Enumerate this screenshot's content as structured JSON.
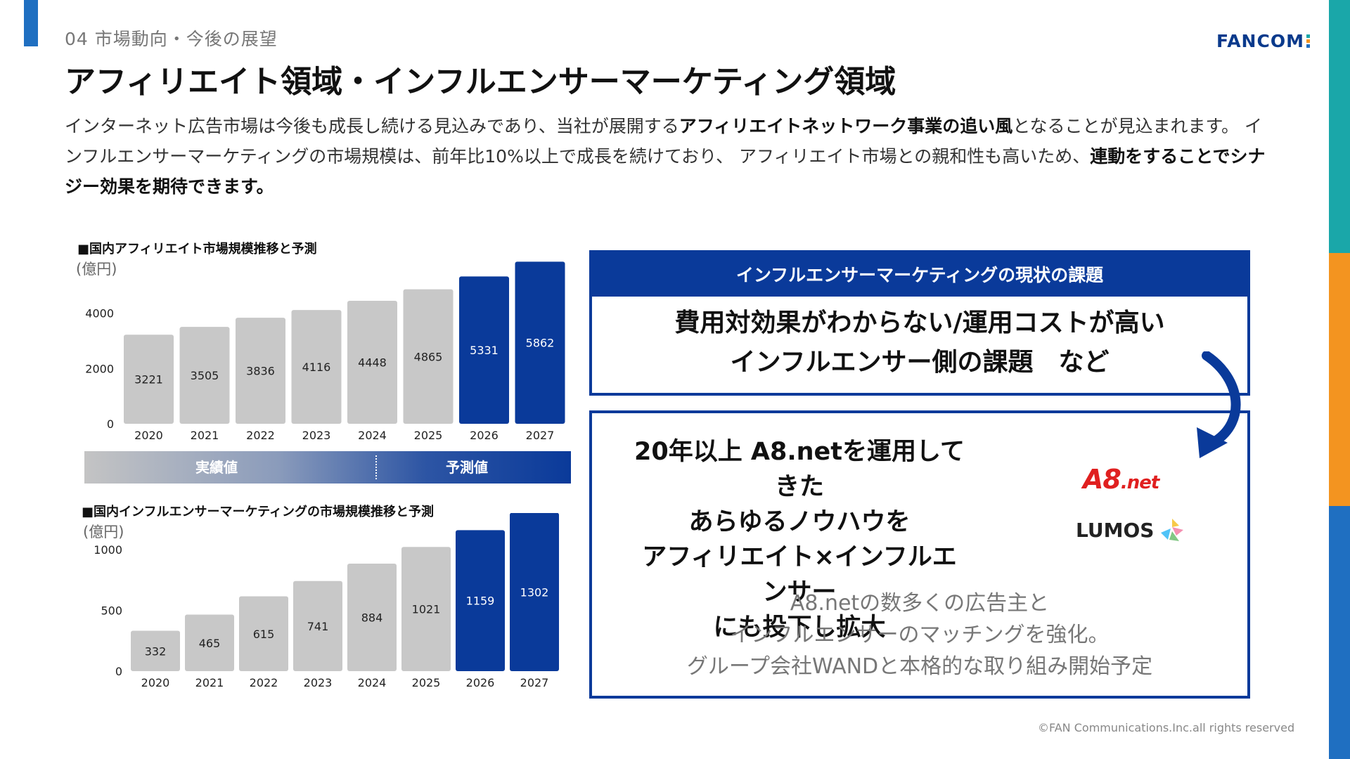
{
  "header": {
    "section": "04 市場動向・今後の展望",
    "logo_text": "FANCOM",
    "title": "アフィリエイト領域・インフルエンサーマーケティング領域"
  },
  "intro": {
    "p1": "インターネット広告市場は今後も成長し続ける見込みであり、当社が展開する",
    "b1": "アフィリエイトネットワーク事業の追い風",
    "p2": "となることが見込まれます。 インフルエンサーマーケティングの市場規模は、前年比10%以上で成長を続けており、 アフィリエイト市場との親和性も高いため、",
    "b2": "連動をすることでシナジー効果を期待できます。"
  },
  "chart_data": [
    {
      "type": "bar",
      "title": "■国内アフィリエイト市場規模推移と予測",
      "unit": "(億円)",
      "categories": [
        "2020",
        "2021",
        "2022",
        "2023",
        "2024",
        "2025",
        "2026",
        "2027"
      ],
      "values": [
        3221,
        3505,
        3836,
        4116,
        4448,
        4865,
        5331,
        5862
      ],
      "forecast_from": "2026",
      "yticks": [
        0,
        2000,
        4000
      ],
      "ylim": [
        0,
        6000
      ],
      "colors": {
        "actual": "#c8c8c8",
        "forecast": "#0a3a9a"
      }
    },
    {
      "type": "bar",
      "title": "■国内インフルエンサーマーケティングの市場規模推移と予測",
      "unit": "(億円)",
      "categories": [
        "2020",
        "2021",
        "2022",
        "2023",
        "2024",
        "2025",
        "2026",
        "2027"
      ],
      "values": [
        332,
        465,
        615,
        741,
        884,
        1021,
        1159,
        1302
      ],
      "forecast_from": "2026",
      "yticks": [
        0,
        500,
        1000
      ],
      "ylim": [
        0,
        1300
      ],
      "colors": {
        "actual": "#c8c8c8",
        "forecast": "#0a3a9a"
      }
    }
  ],
  "legend": {
    "actual": "実績値",
    "forecast": "予測値"
  },
  "issue": {
    "heading": "インフルエンサーマーケティングの現状の課題",
    "line1": "費用対効果がわからない/運用コストが高い",
    "line2": "インフルエンサー側の課題　など"
  },
  "solution": {
    "line1": "20年以上 A8.netを運用してきた",
    "line2": "あらゆるノウハウを",
    "line3": "アフィリエイト×インフルエンサー",
    "line4": "にも投下し拡大",
    "sub1": "A8.netの数多くの広告主と",
    "sub2": "インフルエンサーのマッチングを強化。",
    "sub3": "グループ会社WANDと本格的な取り組み開始予定",
    "logo_a8": "A8",
    "logo_a8_net": ".net",
    "logo_lumos": "LUMOS"
  },
  "footer": "©FAN Communications.Inc.all rights reserved"
}
